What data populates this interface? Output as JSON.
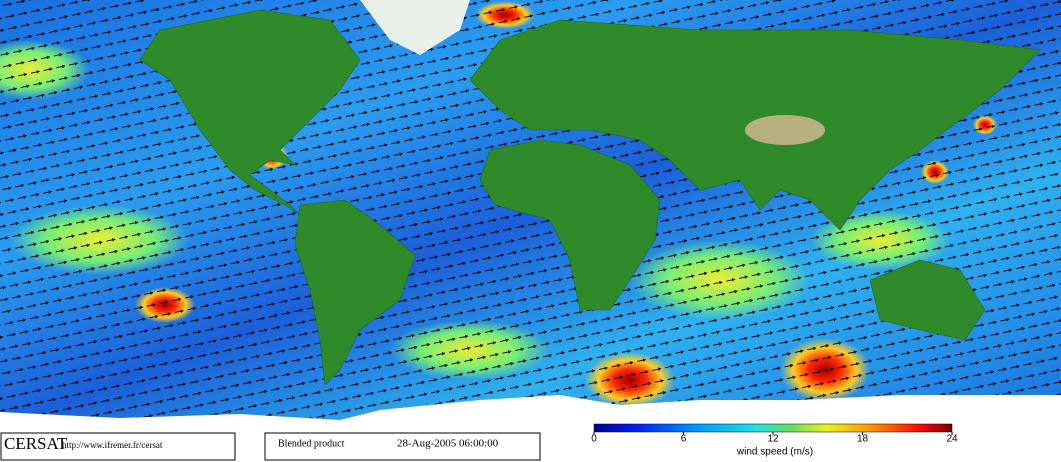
{
  "footer": {
    "logo": "CERSAT",
    "url": "http://www.ifremer.fr/cersat",
    "product": "Blended product",
    "date": "28-Aug-2005 06:00:00"
  },
  "colorbar": {
    "label": "wind speed (m/s)",
    "lim": [
      0,
      24
    ],
    "ticks": [
      0,
      6,
      12,
      18,
      24
    ]
  }
}
